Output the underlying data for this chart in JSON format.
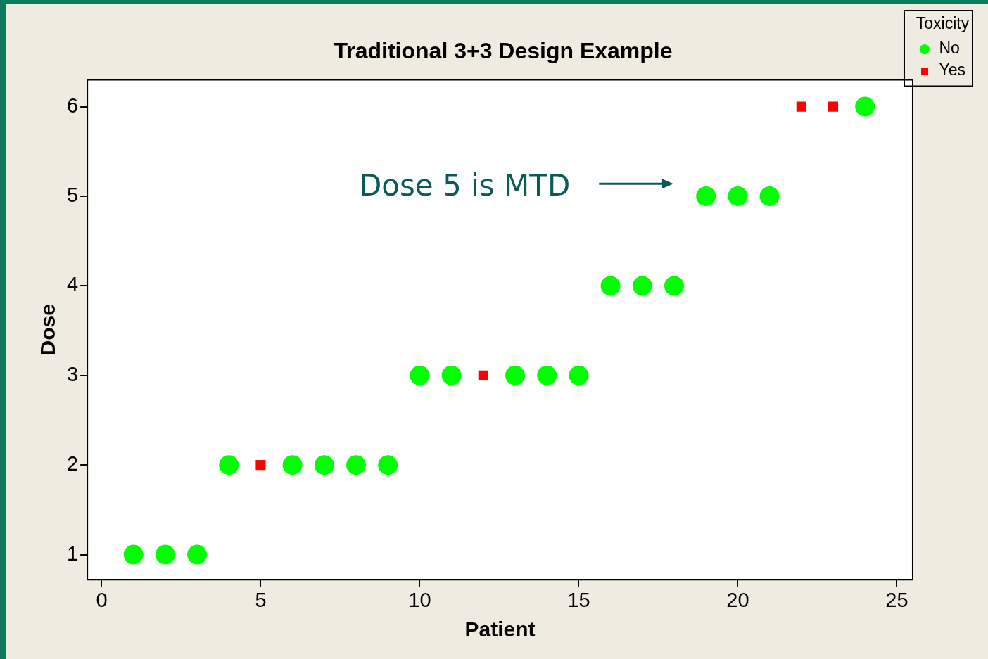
{
  "chart_data": {
    "type": "scatter",
    "title": "Traditional 3+3 Design Example",
    "xlabel": "Patient",
    "ylabel": "Dose",
    "legend_title": "Toxicity",
    "legend": "top right",
    "grid": false,
    "xlim": [
      -0.45,
      25.5
    ],
    "xticks": [
      0,
      5,
      10,
      15,
      20,
      25
    ],
    "ylim": [
      0.72,
      6.3
    ],
    "yticks": [
      1,
      2,
      3,
      4,
      5,
      6
    ],
    "series": [
      {
        "name": "No",
        "color": "#00ff00",
        "marker": "circle",
        "x": [
          1,
          2,
          3,
          4,
          6,
          7,
          8,
          9,
          10,
          11,
          13,
          14,
          15,
          16,
          17,
          18,
          19,
          20,
          21,
          24
        ],
        "values": [
          1,
          1,
          1,
          2,
          2,
          2,
          2,
          2,
          3,
          3,
          3,
          3,
          3,
          4,
          4,
          4,
          5,
          5,
          5,
          6
        ]
      },
      {
        "name": "Yes",
        "color": "#ff0000",
        "marker": "square",
        "x": [
          5,
          12,
          22,
          23
        ],
        "values": [
          2,
          3,
          6,
          6
        ]
      }
    ],
    "annotations": [
      "Dose 5 is MTD"
    ]
  }
}
